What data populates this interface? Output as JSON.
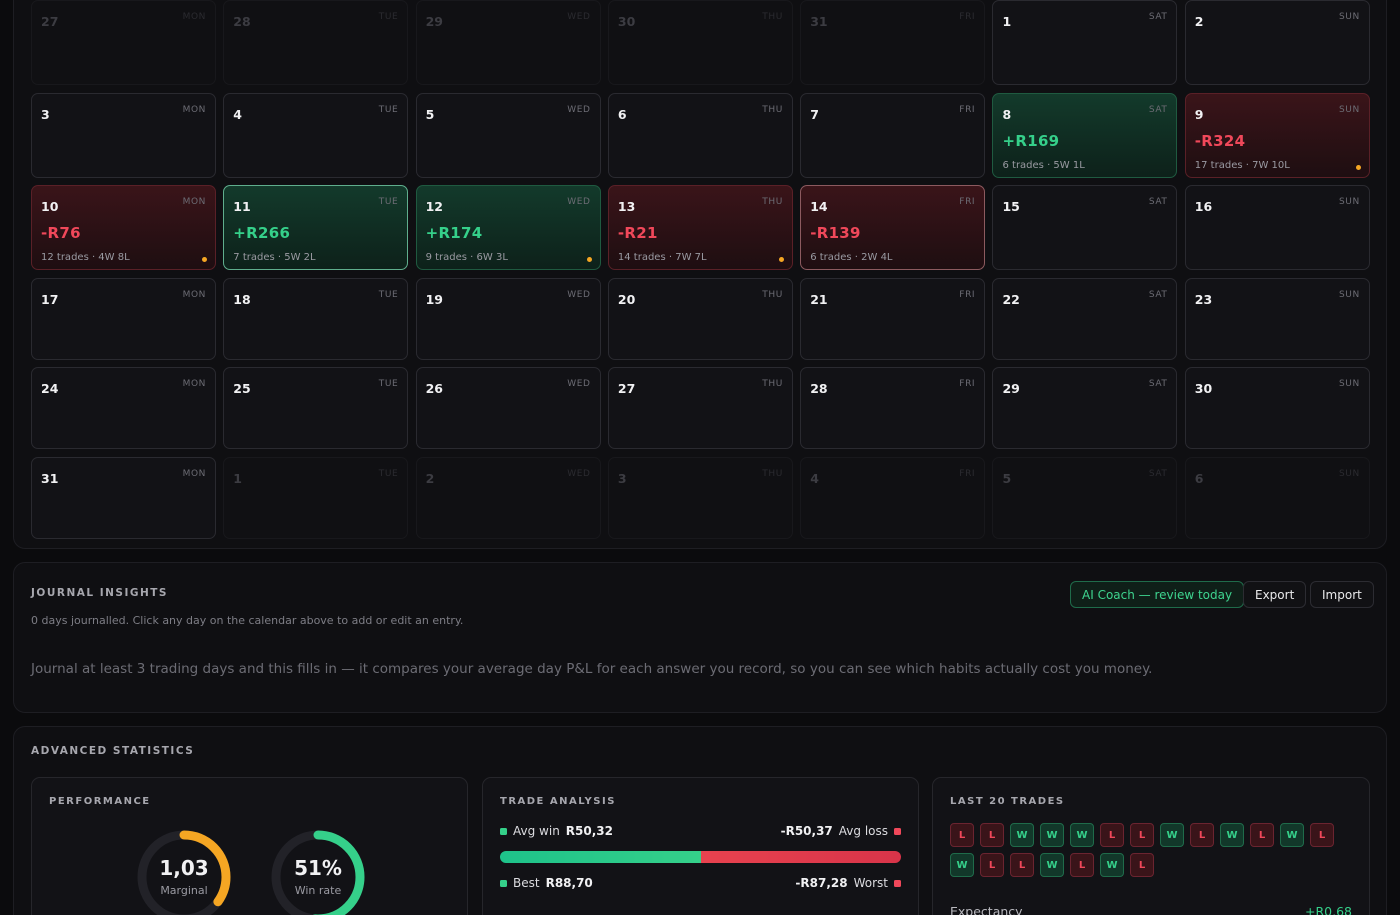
{
  "calendar": {
    "days": [
      {
        "num": "27",
        "dow": "MON",
        "out": true
      },
      {
        "num": "28",
        "dow": "TUE",
        "out": true
      },
      {
        "num": "29",
        "dow": "WED",
        "out": true
      },
      {
        "num": "30",
        "dow": "THU",
        "out": true
      },
      {
        "num": "31",
        "dow": "FRI",
        "out": true
      },
      {
        "num": "1",
        "dow": "SAT"
      },
      {
        "num": "2",
        "dow": "SUN"
      },
      {
        "num": "3",
        "dow": "MON"
      },
      {
        "num": "4",
        "dow": "TUE"
      },
      {
        "num": "5",
        "dow": "WED"
      },
      {
        "num": "6",
        "dow": "THU"
      },
      {
        "num": "7",
        "dow": "FRI"
      },
      {
        "num": "8",
        "dow": "SAT",
        "pnl": "+R169",
        "trades": "6 trades · 5W 1L",
        "result": "win"
      },
      {
        "num": "9",
        "dow": "SUN",
        "pnl": "-R324",
        "trades": "17 trades · 7W 10L",
        "result": "loss",
        "note": true
      },
      {
        "num": "10",
        "dow": "MON",
        "pnl": "-R76",
        "trades": "12 trades · 4W 8L",
        "result": "loss",
        "note": true
      },
      {
        "num": "11",
        "dow": "TUE",
        "pnl": "+R266",
        "trades": "7 trades · 5W 2L",
        "result": "win",
        "highlight": true
      },
      {
        "num": "12",
        "dow": "WED",
        "pnl": "+R174",
        "trades": "9 trades · 6W 3L",
        "result": "win",
        "note": true
      },
      {
        "num": "13",
        "dow": "THU",
        "pnl": "-R21",
        "trades": "14 trades · 7W 7L",
        "result": "loss",
        "note": true
      },
      {
        "num": "14",
        "dow": "FRI",
        "pnl": "-R139",
        "trades": "6 trades · 2W 4L",
        "result": "loss",
        "highlight": true
      },
      {
        "num": "15",
        "dow": "SAT"
      },
      {
        "num": "16",
        "dow": "SUN"
      },
      {
        "num": "17",
        "dow": "MON"
      },
      {
        "num": "18",
        "dow": "TUE"
      },
      {
        "num": "19",
        "dow": "WED"
      },
      {
        "num": "20",
        "dow": "THU"
      },
      {
        "num": "21",
        "dow": "FRI"
      },
      {
        "num": "22",
        "dow": "SAT"
      },
      {
        "num": "23",
        "dow": "SUN"
      },
      {
        "num": "24",
        "dow": "MON"
      },
      {
        "num": "25",
        "dow": "TUE"
      },
      {
        "num": "26",
        "dow": "WED"
      },
      {
        "num": "27",
        "dow": "THU"
      },
      {
        "num": "28",
        "dow": "FRI"
      },
      {
        "num": "29",
        "dow": "SAT"
      },
      {
        "num": "30",
        "dow": "SUN"
      },
      {
        "num": "31",
        "dow": "MON"
      },
      {
        "num": "1",
        "dow": "TUE",
        "out": true
      },
      {
        "num": "2",
        "dow": "WED",
        "out": true
      },
      {
        "num": "3",
        "dow": "THU",
        "out": true
      },
      {
        "num": "4",
        "dow": "FRI",
        "out": true
      },
      {
        "num": "5",
        "dow": "SAT",
        "out": true
      },
      {
        "num": "6",
        "dow": "SUN",
        "out": true
      }
    ]
  },
  "journal": {
    "title": "JOURNAL INSIGHTS",
    "subtitle": "0 days journalled. Click any day on the calendar above to add or edit an entry.",
    "message": "Journal at least 3 trading days and this fills in — it compares your average day P&L for each answer you record, so you can see which habits actually cost you money.",
    "coach_label": "AI Coach — review today",
    "export_label": "Export",
    "import_label": "Import"
  },
  "advanced": {
    "title": "ADVANCED STATISTICS",
    "performance": {
      "title": "PERFORMANCE",
      "profit_factor": {
        "value": "1,03",
        "label": "Marginal",
        "fill": 0.35,
        "color": "#f5a623"
      },
      "win_rate": {
        "value": "51%",
        "label": "Win rate",
        "fill": 0.51,
        "color": "#35d08a"
      }
    },
    "trade_analysis": {
      "title": "TRADE ANALYSIS",
      "avg_win_label": "Avg win",
      "avg_win": "R50,32",
      "avg_loss_label": "Avg loss",
      "avg_loss": "-R50,37",
      "win_share": 0.5,
      "best_label": "Best",
      "best": "R88,70",
      "worst_label": "Worst",
      "worst": "-R87,28"
    },
    "last_trades": {
      "title": "LAST 20 TRADES",
      "results": [
        "L",
        "L",
        "W",
        "W",
        "W",
        "L",
        "L",
        "W",
        "L",
        "W",
        "L",
        "W",
        "L",
        "W",
        "L",
        "L",
        "W",
        "L",
        "W",
        "L"
      ],
      "expectancy_label": "Expectancy",
      "expectancy": "+R0,68"
    }
  }
}
